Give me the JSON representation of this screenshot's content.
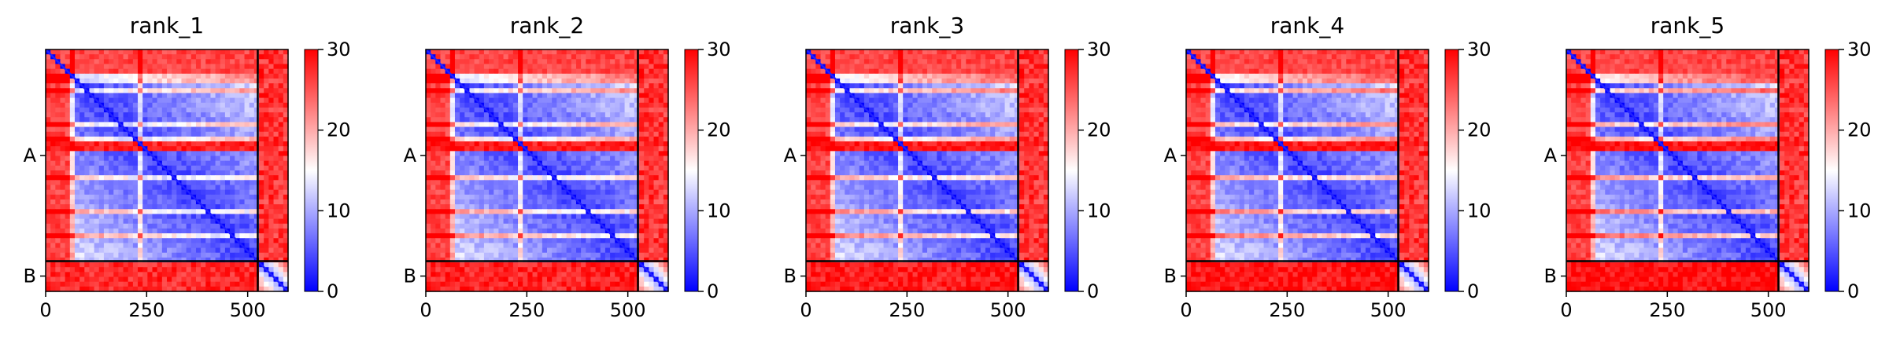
{
  "chart_data": [
    {
      "type": "heatmap",
      "title": "rank_1",
      "x_ticks": [
        {
          "value": 0,
          "label": "0"
        },
        {
          "value": 250,
          "label": "250"
        },
        {
          "value": 500,
          "label": "500"
        }
      ],
      "y_ticks": [
        {
          "value": 263,
          "label": "A"
        },
        {
          "value": 562,
          "label": "B"
        }
      ],
      "xlim": [
        0,
        600
      ],
      "ylim": [
        600,
        0
      ],
      "chains": [
        {
          "name": "A",
          "start": 0,
          "end": 525
        },
        {
          "name": "B",
          "start": 525,
          "end": 600
        }
      ],
      "colorbar": {
        "min": 0,
        "max": 30,
        "ticks": [
          0,
          10,
          20,
          30
        ],
        "colormap": "bwr"
      },
      "variant": 0.0
    },
    {
      "type": "heatmap",
      "title": "rank_2",
      "x_ticks": [
        {
          "value": 0,
          "label": "0"
        },
        {
          "value": 250,
          "label": "250"
        },
        {
          "value": 500,
          "label": "500"
        }
      ],
      "y_ticks": [
        {
          "value": 263,
          "label": "A"
        },
        {
          "value": 562,
          "label": "B"
        }
      ],
      "xlim": [
        0,
        600
      ],
      "ylim": [
        600,
        0
      ],
      "chains": [
        {
          "name": "A",
          "start": 0,
          "end": 525
        },
        {
          "name": "B",
          "start": 525,
          "end": 600
        }
      ],
      "colorbar": {
        "min": 0,
        "max": 30,
        "ticks": [
          0,
          10,
          20,
          30
        ],
        "colormap": "bwr"
      },
      "variant": 0.25
    },
    {
      "type": "heatmap",
      "title": "rank_3",
      "x_ticks": [
        {
          "value": 0,
          "label": "0"
        },
        {
          "value": 250,
          "label": "250"
        },
        {
          "value": 500,
          "label": "500"
        }
      ],
      "y_ticks": [
        {
          "value": 263,
          "label": "A"
        },
        {
          "value": 562,
          "label": "B"
        }
      ],
      "xlim": [
        0,
        600
      ],
      "ylim": [
        600,
        0
      ],
      "chains": [
        {
          "name": "A",
          "start": 0,
          "end": 525
        },
        {
          "name": "B",
          "start": 525,
          "end": 600
        }
      ],
      "colorbar": {
        "min": 0,
        "max": 30,
        "ticks": [
          0,
          10,
          20,
          30
        ],
        "colormap": "bwr"
      },
      "variant": 0.5
    },
    {
      "type": "heatmap",
      "title": "rank_4",
      "x_ticks": [
        {
          "value": 0,
          "label": "0"
        },
        {
          "value": 250,
          "label": "250"
        },
        {
          "value": 500,
          "label": "500"
        }
      ],
      "y_ticks": [
        {
          "value": 263,
          "label": "A"
        },
        {
          "value": 562,
          "label": "B"
        }
      ],
      "xlim": [
        0,
        600
      ],
      "ylim": [
        600,
        0
      ],
      "chains": [
        {
          "name": "A",
          "start": 0,
          "end": 525
        },
        {
          "name": "B",
          "start": 525,
          "end": 600
        }
      ],
      "colorbar": {
        "min": 0,
        "max": 30,
        "ticks": [
          0,
          10,
          20,
          30
        ],
        "colormap": "bwr"
      },
      "variant": 0.7
    },
    {
      "type": "heatmap",
      "title": "rank_5",
      "x_ticks": [
        {
          "value": 0,
          "label": "0"
        },
        {
          "value": 250,
          "label": "250"
        },
        {
          "value": 500,
          "label": "500"
        }
      ],
      "y_ticks": [
        {
          "value": 263,
          "label": "A"
        },
        {
          "value": 562,
          "label": "B"
        }
      ],
      "xlim": [
        0,
        600
      ],
      "ylim": [
        600,
        0
      ],
      "chains": [
        {
          "name": "A",
          "start": 0,
          "end": 525
        },
        {
          "name": "B",
          "start": 525,
          "end": 600
        }
      ],
      "colorbar": {
        "min": 0,
        "max": 30,
        "ticks": [
          0,
          10,
          20,
          30
        ],
        "colormap": "bwr"
      },
      "variant": 0.9
    }
  ],
  "colors": {
    "low": "#0000ff",
    "mid": "#ffffff",
    "high": "#ff0000",
    "chain_border": "#000000"
  }
}
